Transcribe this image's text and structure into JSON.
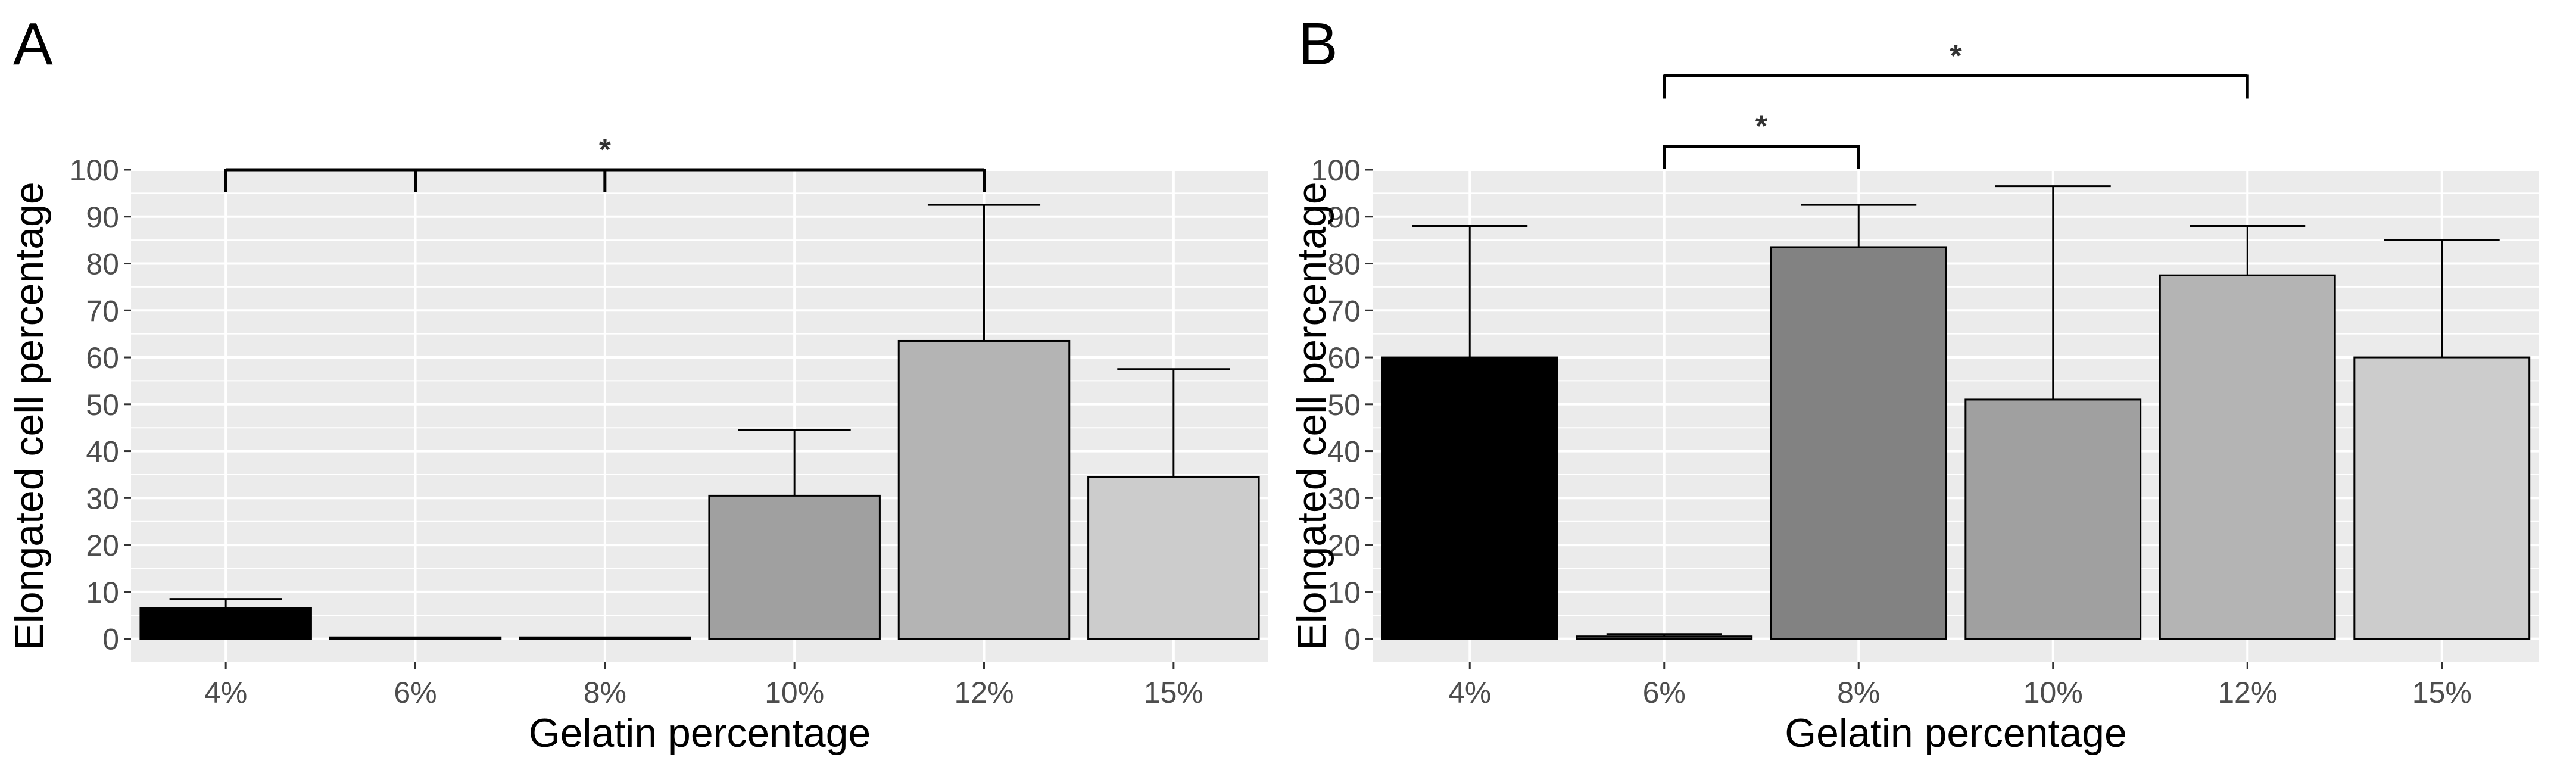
{
  "figure": {
    "panels": [
      "A",
      "B"
    ]
  },
  "colors": {
    "panel_bg": "#ebebeb",
    "gridline": "#ffffff",
    "bar_outline": "#000000",
    "bar_fills": [
      "#000000",
      "#3f3f3f",
      "#828282",
      "#a0a0a0",
      "#b4b4b4",
      "#cccccc"
    ],
    "axis_text": "#4d4d4d",
    "title_text": "#000000"
  },
  "chart_data": [
    {
      "panel": "A",
      "type": "bar",
      "xlabel": "Gelatin percentage",
      "ylabel": "Elongated cell percentage",
      "categories": [
        "4%",
        "6%",
        "8%",
        "10%",
        "12%",
        "15%"
      ],
      "values": [
        6.5,
        0.3,
        0.3,
        30.5,
        63.5,
        34.5
      ],
      "error_upper": [
        8.5,
        null,
        null,
        44.5,
        92.5,
        57.5
      ],
      "ylim": [
        -5,
        100
      ],
      "yticks": [
        0,
        10,
        20,
        30,
        40,
        50,
        60,
        70,
        80,
        90,
        100
      ],
      "grid": true,
      "legend": "none",
      "significance": [
        {
          "label": "*",
          "from": "4%",
          "to": "12%",
          "drops": [
            "4%",
            "6%",
            "8%",
            "12%"
          ],
          "y": 100
        }
      ]
    },
    {
      "panel": "B",
      "type": "bar",
      "xlabel": "Gelatin percentage",
      "ylabel": "Elongated cell percentage",
      "categories": [
        "4%",
        "6%",
        "8%",
        "10%",
        "12%",
        "15%"
      ],
      "values": [
        60,
        0.5,
        83.5,
        51,
        77.5,
        60
      ],
      "error_upper": [
        88,
        1,
        92.5,
        96.5,
        88,
        85
      ],
      "ylim": [
        -5,
        100
      ],
      "yticks": [
        0,
        10,
        20,
        30,
        40,
        50,
        60,
        70,
        80,
        90,
        100
      ],
      "grid": true,
      "legend": "none",
      "significance": [
        {
          "label": "*",
          "from": "6%",
          "to": "8%",
          "drops": [
            "6%",
            "8%"
          ],
          "y": 105
        },
        {
          "label": "*",
          "from": "6%",
          "to": "12%",
          "drops": [
            "6%",
            "12%"
          ],
          "y": 120
        }
      ]
    }
  ]
}
